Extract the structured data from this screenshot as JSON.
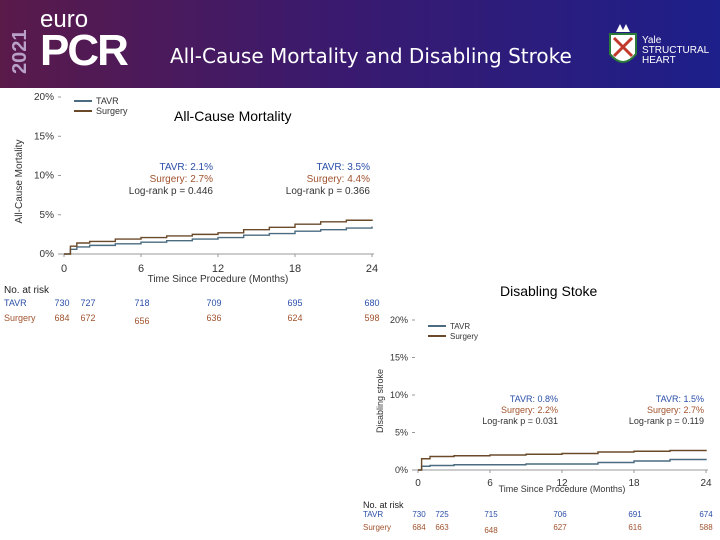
{
  "header": {
    "year": "2021",
    "brand_top": "euro",
    "brand_main": "PCR",
    "title": "All-Cause Mortality and Disabling Stroke",
    "partner_line1": "Yale",
    "partner_line2": "STRUCTURAL",
    "partner_line3": "HEART"
  },
  "colors": {
    "tavr": "#4a6b80",
    "surgery": "#6b4a2a",
    "stat_blue": "#2a4ea8",
    "stat_brown": "#a0522d"
  },
  "chart_data": [
    {
      "type": "line",
      "title": "All-Cause Mortality",
      "xlabel": "Time Since Procedure (Months)",
      "ylabel": "All-Cause Mortality",
      "xlim": [
        0,
        24
      ],
      "ylim": [
        0,
        20
      ],
      "x_ticks": [
        "0",
        "6",
        "12",
        "18",
        "24"
      ],
      "y_ticks": [
        "0%",
        "5%",
        "10%",
        "15%",
        "20%"
      ],
      "legend_position": "top-left",
      "series": [
        {
          "name": "TAVR",
          "x": [
            0,
            0.5,
            1,
            2,
            4,
            6,
            8,
            10,
            12,
            14,
            16,
            18,
            20,
            22,
            24
          ],
          "values": [
            0,
            0.6,
            0.9,
            1.1,
            1.3,
            1.5,
            1.7,
            1.9,
            2.1,
            2.4,
            2.6,
            2.9,
            3.1,
            3.3,
            3.5
          ]
        },
        {
          "name": "Surgery",
          "x": [
            0,
            0.5,
            1,
            2,
            4,
            6,
            8,
            10,
            12,
            14,
            16,
            18,
            20,
            22,
            24
          ],
          "values": [
            0,
            1.0,
            1.4,
            1.6,
            1.9,
            2.1,
            2.3,
            2.5,
            2.7,
            3.1,
            3.4,
            3.8,
            4.1,
            4.3,
            4.4
          ]
        }
      ],
      "annotations": [
        {
          "at_month": 12,
          "tavr": "TAVR: 2.1%",
          "surgery": "Surgery: 2.7%",
          "p": "Log-rank p = 0.446"
        },
        {
          "at_month": 24,
          "tavr": "TAVR: 3.5%",
          "surgery": "Surgery: 4.4%",
          "p": "Log-rank p = 0.366"
        }
      ],
      "risk_table": {
        "title": "No. at risk",
        "rows": [
          {
            "label": "TAVR",
            "values": [
              "730",
              "727",
              "718",
              "709",
              "695",
              "680"
            ]
          },
          {
            "label": "Surgery",
            "values": [
              "684",
              "672",
              "656",
              "636",
              "624",
              "598"
            ]
          }
        ]
      }
    },
    {
      "type": "line",
      "title": "Disabling Stoke",
      "xlabel": "Time Since Procedure (Months)",
      "ylabel": "Disabling stroke",
      "xlim": [
        0,
        24
      ],
      "ylim": [
        0,
        20
      ],
      "x_ticks": [
        "0",
        "6",
        "12",
        "18",
        "24"
      ],
      "y_ticks": [
        "0%",
        "5%",
        "10%",
        "15%",
        "20%"
      ],
      "legend_position": "top-left",
      "series": [
        {
          "name": "TAVR",
          "x": [
            0,
            0.3,
            1,
            3,
            6,
            9,
            12,
            15,
            18,
            21,
            24
          ],
          "values": [
            0,
            0.5,
            0.6,
            0.7,
            0.7,
            0.8,
            0.8,
            1.0,
            1.2,
            1.4,
            1.5
          ]
        },
        {
          "name": "Surgery",
          "x": [
            0,
            0.3,
            1,
            3,
            6,
            9,
            12,
            15,
            18,
            21,
            24
          ],
          "values": [
            0,
            1.5,
            1.8,
            1.9,
            2.0,
            2.1,
            2.2,
            2.4,
            2.5,
            2.6,
            2.7
          ]
        }
      ],
      "annotations": [
        {
          "at_month": 12,
          "tavr": "TAVR: 0.8%",
          "surgery": "Surgery: 2.2%",
          "p": "Log-rank p = 0.031"
        },
        {
          "at_month": 24,
          "tavr": "TAVR: 1.5%",
          "surgery": "Surgery: 2.7%",
          "p": "Log-rank p = 0.119"
        }
      ],
      "risk_table": {
        "title": "No. at risk",
        "rows": [
          {
            "label": "TAVR",
            "values": [
              "730",
              "725",
              "715",
              "706",
              "691",
              "674"
            ]
          },
          {
            "label": "Surgery",
            "values": [
              "684",
              "663",
              "648",
              "627",
              "616",
              "588"
            ]
          }
        ]
      }
    }
  ]
}
